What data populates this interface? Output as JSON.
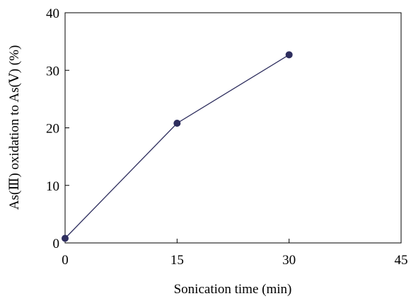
{
  "chart_data": {
    "type": "line",
    "xlabel": "Sonication time (min)",
    "ylabel": "As(Ⅲ) oxidation to As(Ⅴ) (%)",
    "xlim": [
      0,
      45
    ],
    "ylim": [
      0,
      40
    ],
    "xticks": [
      0,
      15,
      30,
      45
    ],
    "yticks": [
      0,
      10,
      20,
      30,
      40
    ],
    "grid": false,
    "series": [
      {
        "x": [
          0,
          15,
          30
        ],
        "y": [
          0.8,
          20.8,
          32.7
        ],
        "color": "#2e2e5e",
        "marker": "circle"
      }
    ]
  }
}
